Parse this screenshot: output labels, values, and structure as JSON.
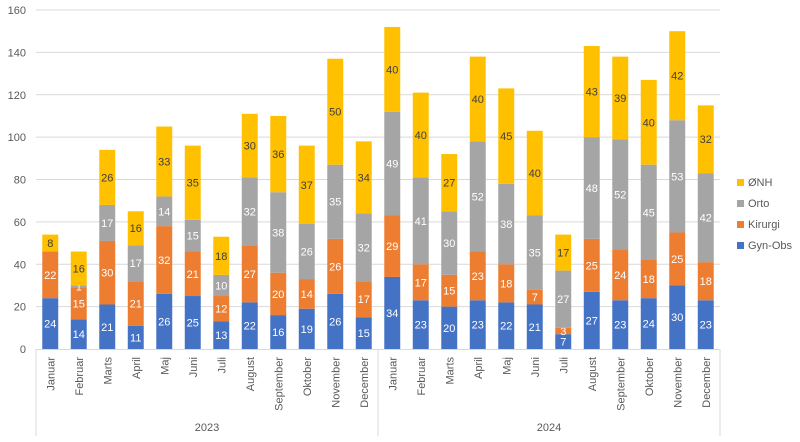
{
  "chart_data": {
    "type": "bar",
    "stacked": true,
    "title": "",
    "xlabel": "",
    "ylabel": "",
    "ylim": [
      0,
      160
    ],
    "yticks": [
      0,
      20,
      40,
      60,
      80,
      100,
      120,
      140,
      160
    ],
    "grid": true,
    "legend_position": "right",
    "groups": [
      {
        "label": "2023",
        "months": [
          "Januar",
          "Februar",
          "Marts",
          "April",
          "Maj",
          "Juni",
          "Juli",
          "August",
          "September",
          "Oktober",
          "November",
          "December"
        ]
      },
      {
        "label": "2024",
        "months": [
          "Januar",
          "Februar",
          "Marts",
          "April",
          "Maj",
          "Juni",
          "Juli",
          "August",
          "September",
          "Oktober",
          "November",
          "December"
        ]
      }
    ],
    "series": [
      {
        "name": "Gyn-Obs",
        "color": "#4472C4",
        "label_color": "#FFFFFF",
        "values": [
          24,
          14,
          21,
          11,
          26,
          25,
          13,
          22,
          16,
          19,
          26,
          15,
          34,
          23,
          20,
          23,
          22,
          21,
          7,
          27,
          23,
          24,
          30,
          23
        ]
      },
      {
        "name": "Kirurgi",
        "color": "#ED7D31",
        "label_color": "#FFFFFF",
        "values": [
          22,
          15,
          30,
          21,
          32,
          21,
          12,
          27,
          20,
          14,
          26,
          17,
          29,
          17,
          15,
          23,
          18,
          7,
          3,
          25,
          24,
          18,
          25,
          18
        ]
      },
      {
        "name": "Orto",
        "color": "#A5A5A5",
        "label_color": "#FFFFFF",
        "values": [
          0,
          1,
          17,
          17,
          14,
          15,
          10,
          32,
          38,
          26,
          35,
          32,
          49,
          41,
          30,
          52,
          38,
          35,
          27,
          48,
          52,
          45,
          53,
          42
        ]
      },
      {
        "name": "ØNH",
        "color": "#FFC000",
        "label_color": "#404040",
        "values": [
          8,
          16,
          26,
          16,
          33,
          35,
          18,
          30,
          36,
          37,
          50,
          34,
          40,
          40,
          27,
          40,
          45,
          40,
          17,
          43,
          39,
          40,
          42,
          32
        ]
      }
    ],
    "legend_order": [
      "ØNH",
      "Orto",
      "Kirurgi",
      "Gyn-Obs"
    ]
  }
}
